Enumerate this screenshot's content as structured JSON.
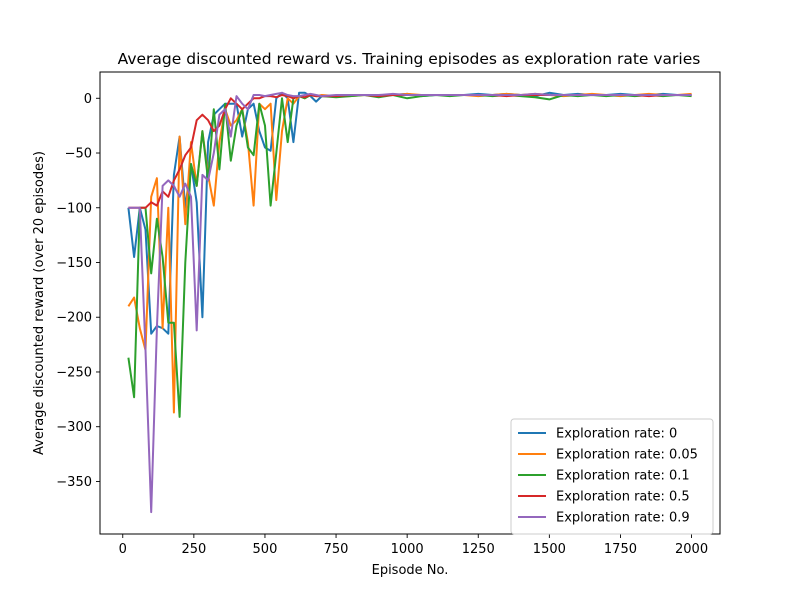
{
  "chart_data": {
    "type": "line",
    "title": "Average discounted reward vs. Training episodes as exploration rate varies",
    "xlabel": "Episode No.",
    "ylabel": "Average discounted reward (over 20 episodes)",
    "xlim": [
      -80,
      2100
    ],
    "ylim": [
      -398,
      24
    ],
    "xticks": [
      0,
      250,
      500,
      750,
      1000,
      1250,
      1500,
      1750,
      2000
    ],
    "yticks": [
      0,
      -50,
      -100,
      -150,
      -200,
      -250,
      -300,
      -350
    ],
    "grid": false,
    "legend_position": "lower-right",
    "x": [
      20,
      40,
      60,
      80,
      100,
      120,
      140,
      160,
      180,
      200,
      220,
      240,
      260,
      280,
      300,
      320,
      340,
      360,
      380,
      400,
      420,
      440,
      460,
      480,
      500,
      520,
      540,
      560,
      580,
      600,
      620,
      640,
      660,
      680,
      700,
      750,
      800,
      850,
      900,
      950,
      1000,
      1050,
      1100,
      1150,
      1200,
      1250,
      1300,
      1350,
      1400,
      1450,
      1500,
      1550,
      1600,
      1650,
      1700,
      1750,
      1800,
      1850,
      1900,
      1950,
      2000
    ],
    "series": [
      {
        "name": "Exploration rate: 0",
        "color": "#1f77b4",
        "values": [
          -100,
          -145,
          -100,
          -120,
          -215,
          -208,
          -210,
          -215,
          -70,
          -35,
          -100,
          -60,
          -95,
          -200,
          -40,
          -15,
          -10,
          -5,
          -5,
          -5,
          -35,
          -10,
          -5,
          -30,
          -45,
          -48,
          0,
          5,
          0,
          -40,
          5,
          5,
          2,
          -3,
          2,
          2,
          3,
          3,
          3,
          3,
          4,
          2,
          3,
          3,
          3,
          4,
          3,
          4,
          3,
          2,
          5,
          3,
          4,
          3,
          3,
          4,
          3,
          3,
          4,
          3,
          3
        ]
      },
      {
        "name": "Exploration rate: 0.05",
        "color": "#ff7f0e",
        "values": [
          -190,
          -182,
          -210,
          -230,
          -90,
          -73,
          -210,
          -100,
          -287,
          -35,
          -115,
          -40,
          -80,
          -30,
          -70,
          -98,
          -40,
          -10,
          -25,
          -20,
          -10,
          -40,
          -98,
          -5,
          -10,
          -5,
          -93,
          -30,
          0,
          -5,
          2,
          0,
          3,
          2,
          3,
          2,
          2,
          3,
          3,
          3,
          4,
          3,
          3,
          3,
          3,
          2,
          3,
          4,
          3,
          4,
          3,
          2,
          3,
          4,
          3,
          2,
          3,
          4,
          3,
          3,
          4
        ]
      },
      {
        "name": "Exploration rate: 0.1",
        "color": "#2ca02c",
        "values": [
          -237,
          -273,
          -100,
          -100,
          -160,
          -110,
          -145,
          -205,
          -205,
          -291,
          -150,
          -60,
          -80,
          -30,
          -75,
          -10,
          -65,
          -5,
          -57,
          -25,
          -10,
          -45,
          -52,
          -5,
          -25,
          -98,
          -50,
          0,
          -40,
          0,
          2,
          0,
          3,
          2,
          2,
          1,
          2,
          3,
          1,
          3,
          0,
          2,
          3,
          2,
          3,
          3,
          2,
          3,
          2,
          1,
          -1,
          3,
          2,
          3,
          2,
          3,
          2,
          3,
          2,
          3,
          2
        ]
      },
      {
        "name": "Exploration rate: 0.5",
        "color": "#d62728",
        "values": [
          -100,
          -100,
          -100,
          -100,
          -95,
          -98,
          -85,
          -90,
          -75,
          -65,
          -52,
          -45,
          -20,
          -15,
          -20,
          -30,
          -25,
          -10,
          0,
          -5,
          -10,
          -5,
          0,
          0,
          2,
          2,
          1,
          3,
          2,
          0,
          2,
          1,
          3,
          2,
          2,
          2,
          3,
          3,
          2,
          3,
          3,
          3,
          3,
          3,
          3,
          3,
          3,
          2,
          3,
          3,
          3,
          3,
          3,
          3,
          3,
          3,
          3,
          2,
          3,
          3,
          3
        ]
      },
      {
        "name": "Exploration rate: 0.9",
        "color": "#9467bd",
        "values": [
          -100,
          -100,
          -100,
          -230,
          -378,
          -210,
          -80,
          -75,
          -80,
          -90,
          -78,
          -90,
          -212,
          -70,
          -75,
          -50,
          -15,
          -10,
          -35,
          2,
          -5,
          -10,
          3,
          3,
          2,
          3,
          4,
          5,
          3,
          2,
          2,
          3,
          4,
          3,
          2,
          3,
          3,
          3,
          3,
          4,
          3,
          3,
          3,
          3,
          3,
          3,
          3,
          3,
          3,
          4,
          3,
          3,
          3,
          3,
          3,
          3,
          3,
          3,
          3,
          3,
          3
        ]
      }
    ]
  }
}
